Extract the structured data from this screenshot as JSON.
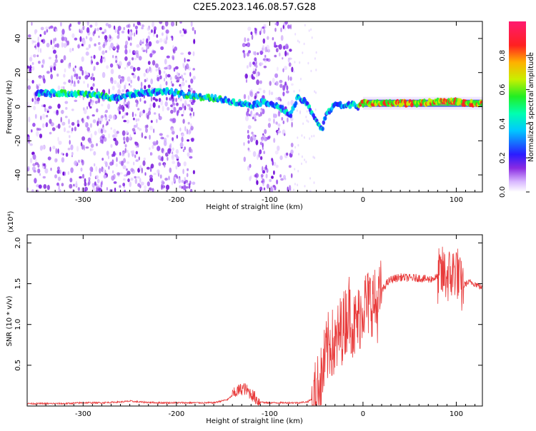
{
  "title": "C2E5.2023.146.08.57.G28",
  "colors": {
    "snr_line": "#e83a3a",
    "frame": "#000000",
    "scatter_base": "#8a2be2"
  },
  "chart_data": [
    {
      "type": "heatmap",
      "xlabel": "Height of straight line (km)",
      "ylabel": "Frequency (Hz)",
      "xlim": [
        -360,
        128
      ],
      "ylim": [
        -50,
        50
      ],
      "x_ticks": [
        -300,
        -200,
        -100,
        0,
        100
      ],
      "x_tick_labels": [
        "-300",
        "-200",
        "-100",
        "0",
        "100"
      ],
      "y_ticks": [
        -40,
        -20,
        0,
        20,
        40
      ],
      "y_tick_labels": [
        "-40",
        "-20",
        "0",
        "20",
        "40"
      ],
      "colorbar": {
        "label": "Normalized spectral amplitude",
        "range": [
          0,
          1
        ],
        "ticks": [
          0.0,
          0.2,
          0.4,
          0.6,
          0.8
        ],
        "tick_labels": [
          "0.0",
          "0.2",
          "0.4",
          "0.6",
          "0.8"
        ],
        "colormap": "rainbow (white-violet-blue-cyan-green-yellow-red-magenta)"
      },
      "noise_bands_km": [
        [
          -360,
          -258
        ],
        [
          -258,
          -180
        ],
        [
          -128,
          -75
        ]
      ],
      "ridge": {
        "x": [
          -350,
          -320,
          -290,
          -265,
          -240,
          -210,
          -180,
          -160,
          -140,
          -120,
          -105,
          -95,
          -85,
          -78,
          -70,
          -62,
          -55,
          -48,
          -44,
          -40,
          -35,
          -30,
          -20,
          -10,
          -5,
          0,
          20,
          40,
          60,
          80,
          100,
          115,
          128
        ],
        "y": [
          8,
          8,
          7,
          5,
          8,
          9,
          6,
          5,
          3,
          1,
          3,
          1,
          -2,
          -5,
          5,
          3,
          -3,
          -10,
          -14,
          -5,
          -2,
          2,
          0,
          2,
          0,
          2,
          2,
          2,
          2,
          3,
          3,
          2,
          2
        ]
      },
      "strong_band_km": [
        0,
        128
      ],
      "strong_band_freq_hz": 2
    },
    {
      "type": "line",
      "xlabel": "Height of straight line (km)",
      "ylabel": "SNR (10 * v/v)",
      "y_multiplier_label": "(x10⁴)",
      "xlim": [
        -360,
        128
      ],
      "ylim": [
        0,
        2.1
      ],
      "x_ticks": [
        -300,
        -200,
        -100,
        0,
        100
      ],
      "x_tick_labels": [
        "-300",
        "-200",
        "-100",
        "0",
        "100"
      ],
      "y_ticks": [
        0.5,
        1.0,
        1.5,
        2.0
      ],
      "y_tick_labels": [
        "0.5",
        "1.0",
        "1.5",
        "2.0"
      ],
      "series": [
        {
          "x": [
            -360,
            -340,
            -320,
            -300,
            -280,
            -260,
            -250,
            -240,
            -220,
            -200,
            -180,
            -160,
            -145,
            -135,
            -128,
            -120,
            -112,
            -105,
            -95,
            -80,
            -70,
            -60,
            -52,
            -45,
            -40,
            -35,
            -30,
            -25,
            -20,
            -15,
            -10,
            -5,
            0,
            5,
            10,
            15,
            20,
            25,
            30,
            40,
            50,
            60,
            70,
            80,
            85,
            90,
            95,
            100,
            105,
            110,
            115,
            120,
            128
          ],
          "y": [
            0.03,
            0.03,
            0.03,
            0.04,
            0.04,
            0.05,
            0.06,
            0.05,
            0.04,
            0.04,
            0.04,
            0.04,
            0.08,
            0.18,
            0.22,
            0.15,
            0.06,
            0.04,
            0.04,
            0.04,
            0.04,
            0.05,
            0.1,
            0.3,
            0.6,
            0.8,
            0.7,
            0.9,
            1.0,
            1.2,
            0.95,
            1.05,
            1.25,
            1.25,
            1.3,
            1.2,
            1.4,
            1.5,
            1.55,
            1.58,
            1.57,
            1.57,
            1.55,
            1.58,
            1.62,
            1.6,
            1.6,
            1.7,
            1.45,
            1.5,
            1.52,
            1.5,
            1.45
          ]
        }
      ]
    }
  ]
}
